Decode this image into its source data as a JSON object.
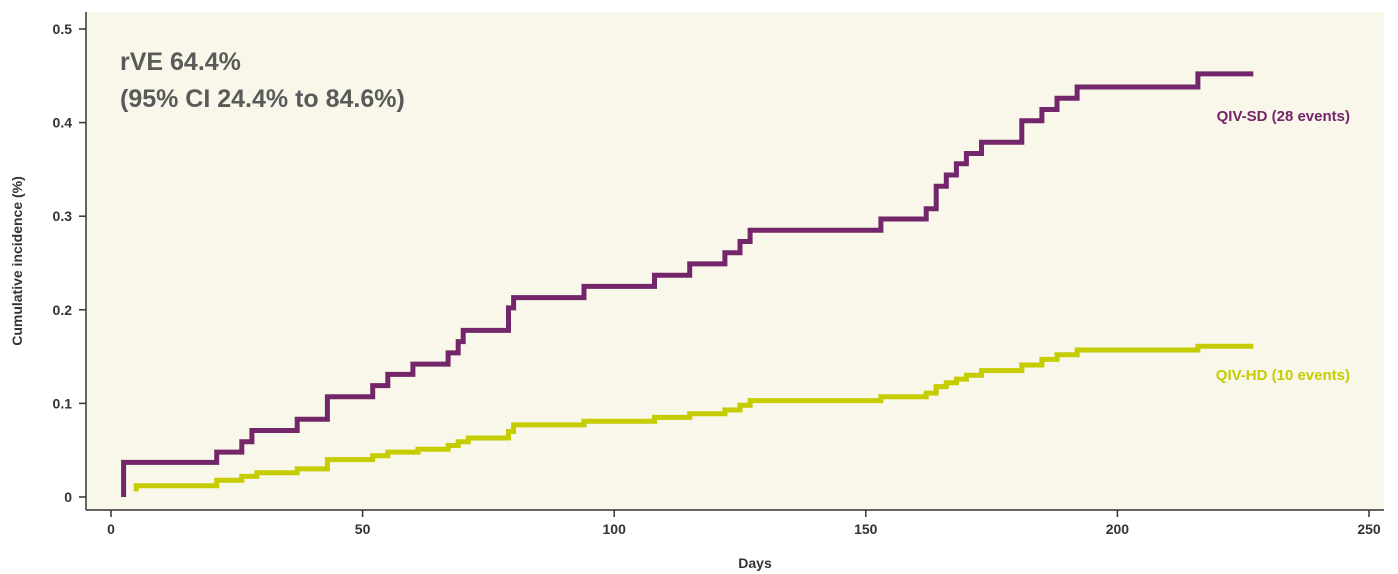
{
  "chart_data": {
    "type": "line",
    "step": true,
    "xlabel": "Days",
    "ylabel": "Cumulative incidence (%)",
    "xlim": [
      0,
      250
    ],
    "ylim": [
      0,
      0.5
    ],
    "x_ticks": [
      0,
      50,
      100,
      150,
      200,
      250
    ],
    "y_ticks": [
      0,
      0.1,
      0.2,
      0.3,
      0.4,
      0.5
    ],
    "x_tick_labels": [
      "0",
      "50",
      "100",
      "150",
      "200",
      "250"
    ],
    "y_tick_labels": [
      "0",
      "0.1",
      "0.2",
      "0.3",
      "0.4",
      "0.5"
    ],
    "grid": false,
    "background_color": "#f8f7e9",
    "annotation_lines": [
      "rVE 64.4%",
      "(95% CI 24.4% to 84.6%)"
    ],
    "series": [
      {
        "name": "QIV-SD (28 events)",
        "color": "#74266b",
        "points": [
          [
            2.5,
            0
          ],
          [
            2.5,
            0.037
          ],
          [
            21,
            0.037
          ],
          [
            21,
            0.048
          ],
          [
            26,
            0.048
          ],
          [
            26,
            0.059
          ],
          [
            28,
            0.059
          ],
          [
            28,
            0.071
          ],
          [
            37,
            0.071
          ],
          [
            37,
            0.083
          ],
          [
            43,
            0.083
          ],
          [
            43,
            0.107
          ],
          [
            52,
            0.107
          ],
          [
            52,
            0.119
          ],
          [
            55,
            0.119
          ],
          [
            55,
            0.131
          ],
          [
            60,
            0.131
          ],
          [
            60,
            0.142
          ],
          [
            67,
            0.142
          ],
          [
            67,
            0.154
          ],
          [
            69,
            0.154
          ],
          [
            69,
            0.166
          ],
          [
            70,
            0.166
          ],
          [
            70,
            0.178
          ],
          [
            79,
            0.178
          ],
          [
            79,
            0.202
          ],
          [
            80,
            0.202
          ],
          [
            80,
            0.213
          ],
          [
            94,
            0.213
          ],
          [
            94,
            0.225
          ],
          [
            108,
            0.225
          ],
          [
            108,
            0.237
          ],
          [
            115,
            0.237
          ],
          [
            115,
            0.249
          ],
          [
            122,
            0.249
          ],
          [
            122,
            0.261
          ],
          [
            125,
            0.261
          ],
          [
            125,
            0.273
          ],
          [
            127,
            0.273
          ],
          [
            127,
            0.285
          ],
          [
            153,
            0.285
          ],
          [
            153,
            0.297
          ],
          [
            162,
            0.297
          ],
          [
            162,
            0.308
          ],
          [
            164,
            0.308
          ],
          [
            164,
            0.332
          ],
          [
            166,
            0.332
          ],
          [
            166,
            0.344
          ],
          [
            168,
            0.344
          ],
          [
            168,
            0.356
          ],
          [
            170,
            0.356
          ],
          [
            170,
            0.367
          ],
          [
            173,
            0.367
          ],
          [
            173,
            0.379
          ],
          [
            181,
            0.379
          ],
          [
            181,
            0.402
          ],
          [
            185,
            0.402
          ],
          [
            185,
            0.414
          ],
          [
            188,
            0.414
          ],
          [
            188,
            0.426
          ],
          [
            192,
            0.426
          ],
          [
            192,
            0.438
          ],
          [
            216,
            0.438
          ],
          [
            216,
            0.452
          ],
          [
            227,
            0.452
          ]
        ]
      },
      {
        "name": "QIV-HD (10 events)",
        "color": "#c5cc00",
        "points": [
          [
            5,
            0.006
          ],
          [
            5,
            0.012
          ],
          [
            21,
            0.012
          ],
          [
            21,
            0.018
          ],
          [
            26,
            0.018
          ],
          [
            26,
            0.022
          ],
          [
            29,
            0.022
          ],
          [
            29,
            0.026
          ],
          [
            37,
            0.026
          ],
          [
            37,
            0.03
          ],
          [
            43,
            0.03
          ],
          [
            43,
            0.04
          ],
          [
            52,
            0.04
          ],
          [
            52,
            0.044
          ],
          [
            55,
            0.044
          ],
          [
            55,
            0.048
          ],
          [
            61,
            0.048
          ],
          [
            61,
            0.051
          ],
          [
            67,
            0.051
          ],
          [
            67,
            0.055
          ],
          [
            69,
            0.055
          ],
          [
            69,
            0.059
          ],
          [
            71,
            0.059
          ],
          [
            71,
            0.063
          ],
          [
            79,
            0.063
          ],
          [
            79,
            0.07
          ],
          [
            80,
            0.07
          ],
          [
            80,
            0.077
          ],
          [
            94,
            0.077
          ],
          [
            94,
            0.081
          ],
          [
            108,
            0.081
          ],
          [
            108,
            0.085
          ],
          [
            115,
            0.085
          ],
          [
            115,
            0.089
          ],
          [
            122,
            0.089
          ],
          [
            122,
            0.093
          ],
          [
            125,
            0.093
          ],
          [
            125,
            0.098
          ],
          [
            127,
            0.098
          ],
          [
            127,
            0.103
          ],
          [
            153,
            0.103
          ],
          [
            153,
            0.107
          ],
          [
            162,
            0.107
          ],
          [
            162,
            0.111
          ],
          [
            164,
            0.111
          ],
          [
            164,
            0.118
          ],
          [
            166,
            0.118
          ],
          [
            166,
            0.122
          ],
          [
            168,
            0.122
          ],
          [
            168,
            0.126
          ],
          [
            170,
            0.126
          ],
          [
            170,
            0.13
          ],
          [
            173,
            0.13
          ],
          [
            173,
            0.135
          ],
          [
            181,
            0.135
          ],
          [
            181,
            0.141
          ],
          [
            185,
            0.141
          ],
          [
            185,
            0.147
          ],
          [
            188,
            0.147
          ],
          [
            188,
            0.152
          ],
          [
            192,
            0.152
          ],
          [
            192,
            0.157
          ],
          [
            216,
            0.157
          ],
          [
            216,
            0.161
          ],
          [
            227,
            0.161
          ]
        ]
      }
    ]
  }
}
